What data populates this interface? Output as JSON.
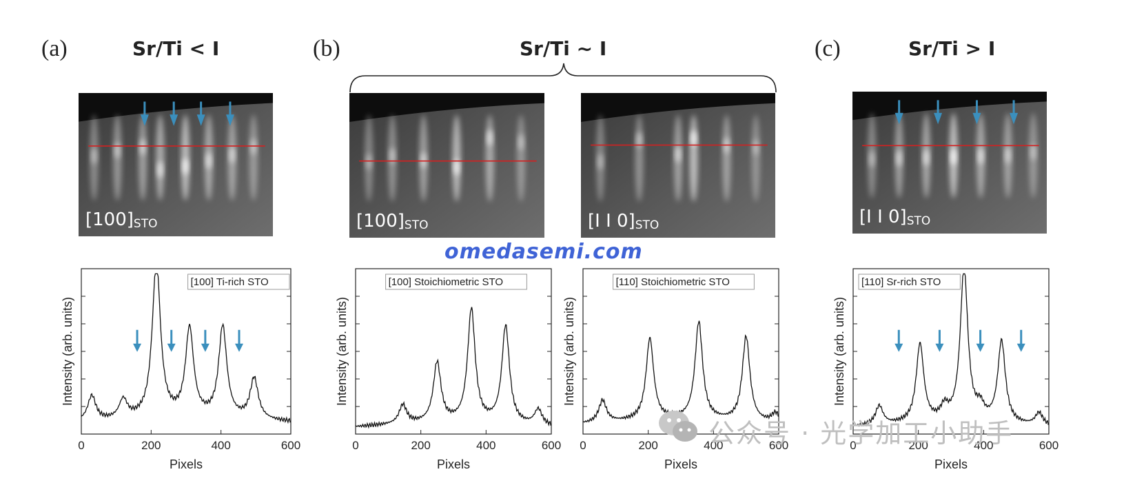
{
  "panels": [
    {
      "letter": "(a)",
      "heading": "Sr/Ti < I"
    },
    {
      "letter": "(b)",
      "heading": "Sr/Ti ~ I"
    },
    {
      "letter": "(c)",
      "heading": "Sr/Ti > I"
    }
  ],
  "rheed_images": [
    {
      "dir": "[100]",
      "sub": "STO",
      "arrows": 4
    },
    {
      "dir": "[100]",
      "sub": "STO",
      "arrows": 0
    },
    {
      "dir": "[I I 0]",
      "sub": "STO",
      "arrows": 0
    },
    {
      "dir": "[I I 0]",
      "sub": "STO",
      "arrows": 4
    }
  ],
  "watermark": {
    "site": "omedasemi.com",
    "wechat": "公众号 · 光学加工小助手",
    "wechat_icon": "wechat-icon"
  },
  "colors": {
    "arrow": "#3b8fbd",
    "line_cut": "#d42020",
    "site": "#3f63d6"
  },
  "chart_data": [
    {
      "type": "line",
      "legend": "[100] Ti-rich STO",
      "xlabel": "Pixels",
      "ylabel": "Intensity (arb. units)",
      "xlim": [
        0,
        600
      ],
      "xticks": [
        "0",
        "200",
        "400",
        "600"
      ],
      "peaks": [
        [
          30,
          0.16
        ],
        [
          120,
          0.12
        ],
        [
          215,
          1.0
        ],
        [
          310,
          0.56
        ],
        [
          405,
          0.58
        ],
        [
          495,
          0.26
        ]
      ],
      "arrows_x": [
        160,
        258,
        355,
        452
      ],
      "base": 0.06
    },
    {
      "type": "line",
      "legend": "[100] Stoichiometric STO",
      "xlabel": "Pixels",
      "ylabel": "Intensity (arb. units)",
      "xlim": [
        0,
        600
      ],
      "xticks": [
        "0",
        "200",
        "400",
        "600"
      ],
      "peaks": [
        [
          145,
          0.12
        ],
        [
          250,
          0.38
        ],
        [
          355,
          0.72
        ],
        [
          460,
          0.62
        ],
        [
          560,
          0.1
        ]
      ],
      "arrows_x": [],
      "base": 0.03
    },
    {
      "type": "line",
      "legend": "[110] Stoichiometric STO",
      "xlabel": "Pixels",
      "ylabel": "Intensity (arb. units)",
      "xlim": [
        0,
        600
      ],
      "xticks": [
        "0",
        "200",
        "400",
        "600"
      ],
      "peaks": [
        [
          60,
          0.14
        ],
        [
          205,
          0.52
        ],
        [
          355,
          0.62
        ],
        [
          500,
          0.54
        ],
        [
          590,
          0.06
        ]
      ],
      "arrows_x": [],
      "base": 0.05
    },
    {
      "type": "line",
      "legend": "[110] Sr-rich STO",
      "xlabel": "Pixels",
      "ylabel": "Intensity (arb. units)",
      "xlim": [
        0,
        600
      ],
      "xticks": [
        "0",
        "200",
        "400",
        "600"
      ],
      "peaks": [
        [
          80,
          0.12
        ],
        [
          205,
          0.5
        ],
        [
          280,
          0.08
        ],
        [
          340,
          0.98
        ],
        [
          390,
          0.08
        ],
        [
          455,
          0.52
        ],
        [
          570,
          0.08
        ]
      ],
      "arrows_x": [
        140,
        265,
        390,
        515
      ],
      "base": 0.03
    }
  ]
}
